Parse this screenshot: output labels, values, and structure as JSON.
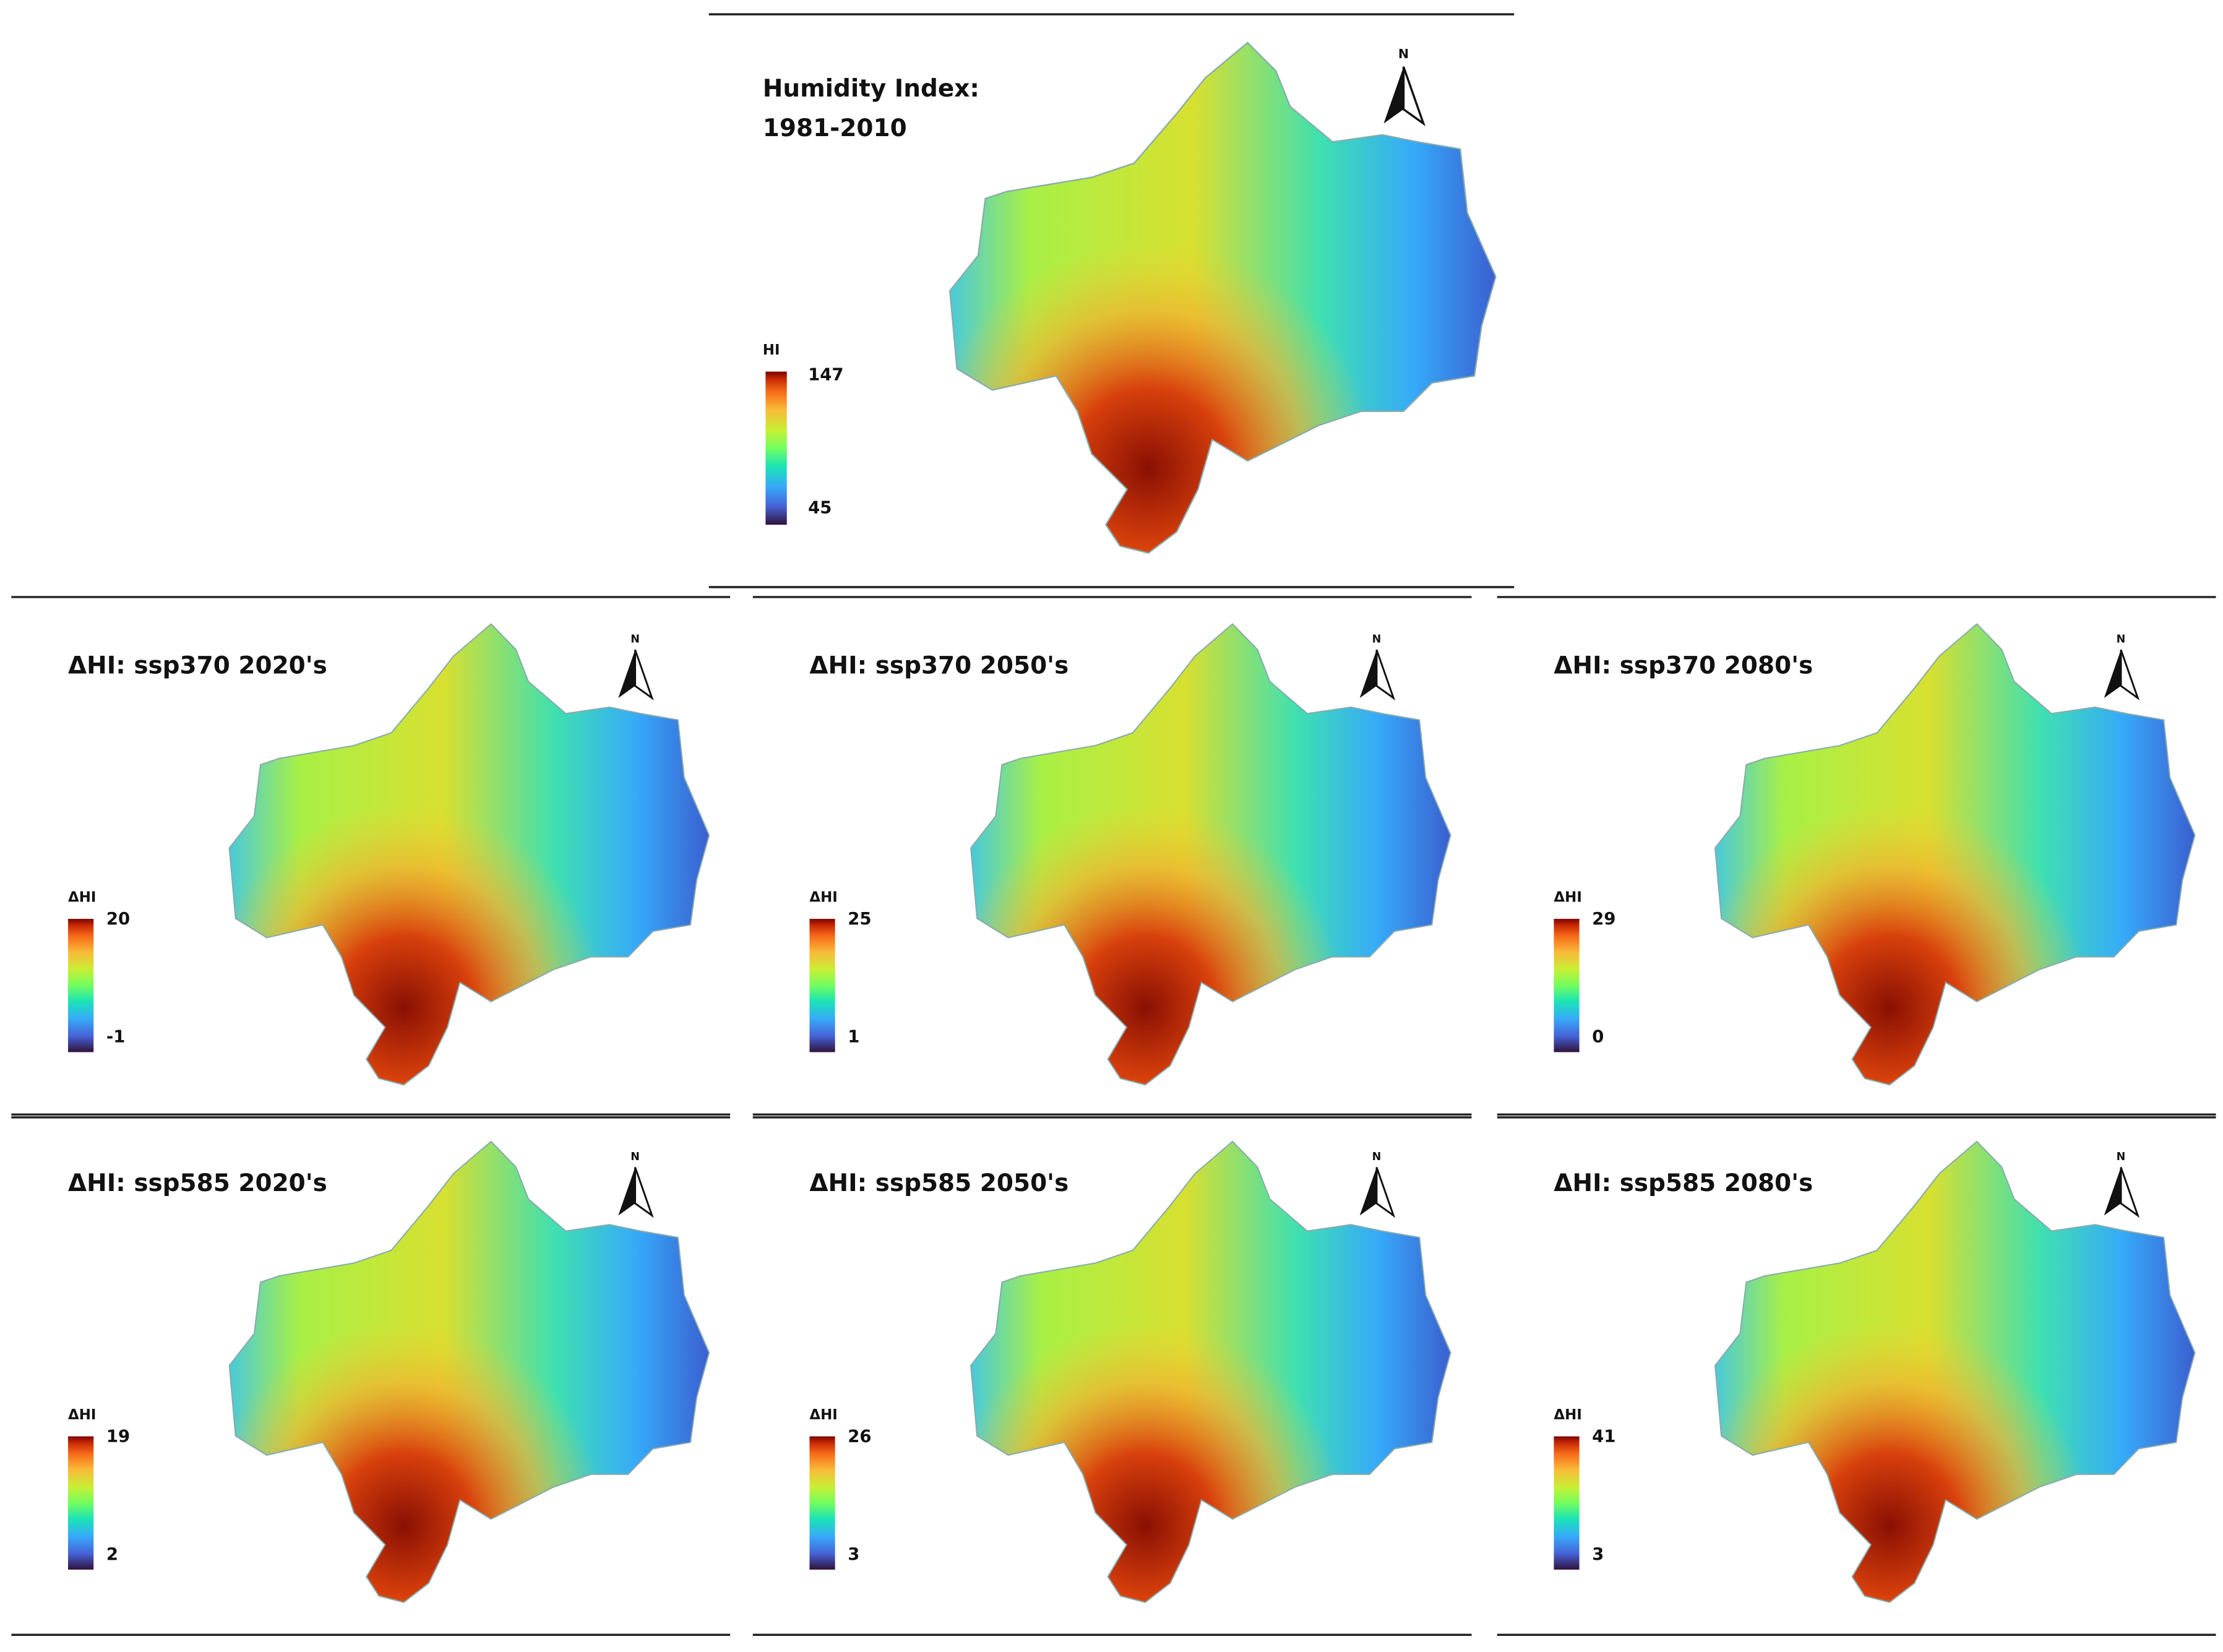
{
  "north_label": "N",
  "panels": [
    {
      "title": "Humidity Index:",
      "subtitle": "1981-2010",
      "legend": {
        "title": "HI",
        "max": 147,
        "min": 45
      }
    },
    {
      "title": "ΔHI: ssp370 2020's",
      "legend": {
        "title": "ΔHI",
        "max": 20,
        "min": -1
      }
    },
    {
      "title": "ΔHI: ssp370 2050's",
      "legend": {
        "title": "ΔHI",
        "max": 25,
        "min": 1
      }
    },
    {
      "title": "ΔHI: ssp370 2080's",
      "legend": {
        "title": "ΔHI",
        "max": 29,
        "min": 0
      }
    },
    {
      "title": "ΔHI: ssp585 2020's",
      "legend": {
        "title": "ΔHI",
        "max": 19,
        "min": 2
      }
    },
    {
      "title": "ΔHI: ssp585 2050's",
      "legend": {
        "title": "ΔHI",
        "max": 26,
        "min": 3
      }
    },
    {
      "title": "ΔHI: ssp585 2080's",
      "legend": {
        "title": "ΔHI",
        "max": 41,
        "min": 3
      }
    }
  ]
}
